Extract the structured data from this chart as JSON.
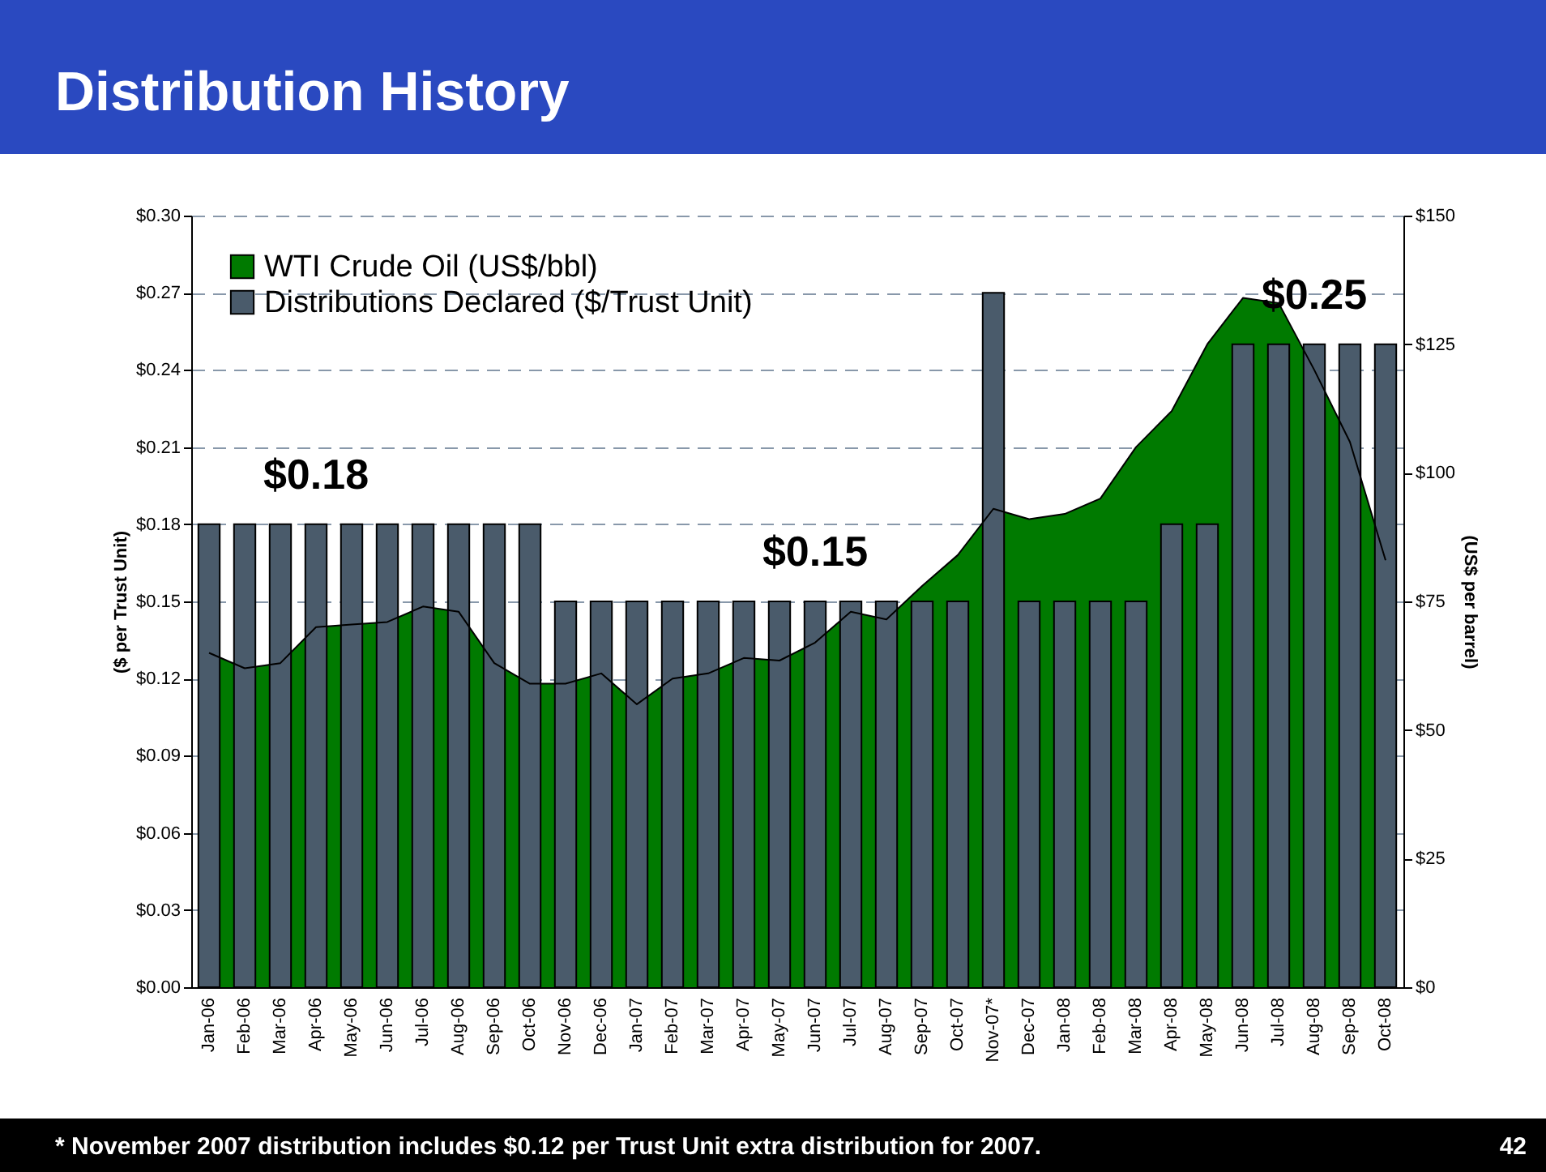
{
  "chart_data": {
    "type": "bar",
    "title": "Distribution History",
    "categories": [
      "Jan-06",
      "Feb-06",
      "Mar-06",
      "Apr-06",
      "May-06",
      "Jun-06",
      "Jul-06",
      "Aug-06",
      "Sep-06",
      "Oct-06",
      "Nov-06",
      "Dec-06",
      "Jan-07",
      "Feb-07",
      "Mar-07",
      "Apr-07",
      "May-07",
      "Jun-07",
      "Jul-07",
      "Aug-07",
      "Sep-07",
      "Oct-07",
      "Nov-07*",
      "Dec-07",
      "Jan-08",
      "Feb-08",
      "Mar-08",
      "Apr-08",
      "May-08",
      "Jun-08",
      "Jul-08",
      "Aug-08",
      "Sep-08",
      "Oct-08"
    ],
    "series": [
      {
        "name": "WTI Crude Oil (US$/bbl)",
        "type": "area",
        "axis": "y2",
        "color": "#007a00",
        "values": [
          65,
          62,
          63,
          70,
          70.5,
          71,
          74,
          73,
          63,
          59,
          59,
          61,
          55,
          60,
          61,
          64,
          63.5,
          67,
          73,
          71.5,
          78,
          84,
          93,
          91,
          92,
          95,
          105,
          112,
          125,
          134,
          133,
          120,
          106,
          83
        ]
      },
      {
        "name": "Distributions Declared ($/Trust Unit)",
        "color": "#4a5b6b",
        "values": [
          0.18,
          0.18,
          0.18,
          0.18,
          0.18,
          0.18,
          0.18,
          0.18,
          0.18,
          0.18,
          0.15,
          0.15,
          0.15,
          0.15,
          0.15,
          0.15,
          0.15,
          0.15,
          0.15,
          0.15,
          0.15,
          0.15,
          0.27,
          0.15,
          0.15,
          0.15,
          0.15,
          0.18,
          0.18,
          0.25,
          0.25,
          0.25,
          0.25,
          0.25
        ]
      }
    ],
    "ylabel": "($ per Trust Unit)",
    "y2label": "(US$ per barrel)",
    "ylim": [
      0,
      0.3
    ],
    "yticks": [
      {
        "value": 0,
        "label": "$0.00"
      },
      {
        "value": 0.03,
        "label": "$0.03"
      },
      {
        "value": 0.06,
        "label": "$0.06"
      },
      {
        "value": 0.09,
        "label": "$0.09"
      },
      {
        "value": 0.12,
        "label": "$0.12"
      },
      {
        "value": 0.15,
        "label": "$0.15"
      },
      {
        "value": 0.18,
        "label": "$0.18"
      },
      {
        "value": 0.21,
        "label": "$0.21"
      },
      {
        "value": 0.24,
        "label": "$0.24"
      },
      {
        "value": 0.27,
        "label": "$0.27"
      },
      {
        "value": 0.3,
        "label": "$0.30"
      }
    ],
    "y2lim": [
      0,
      150
    ],
    "y2ticks": [
      {
        "value": 0,
        "label": "$0"
      },
      {
        "value": 25,
        "label": "$25"
      },
      {
        "value": 50,
        "label": "$50"
      },
      {
        "value": 75,
        "label": "$75"
      },
      {
        "value": 100,
        "label": "$100"
      },
      {
        "value": 125,
        "label": "$125"
      },
      {
        "value": 150,
        "label": "$150"
      }
    ],
    "grid": "y",
    "legend": "top left",
    "annotations": [
      {
        "text": "$0.18",
        "x": "Apr-06",
        "y": 0.18
      },
      {
        "text": "$0.15",
        "x": "Jun-07",
        "y": 0.15
      },
      {
        "text": "$0.25",
        "x": "Aug-08",
        "y": 0.25
      },
      "* November 2007 distribution includes $0.12 per Trust Unit extra distribution for 2007.",
      "42"
    ]
  }
}
